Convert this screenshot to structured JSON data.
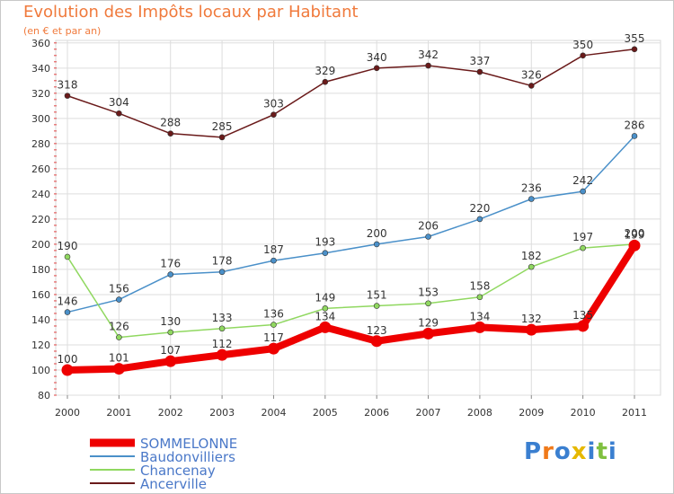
{
  "title": "Evolution des Impôts locaux par Habitant",
  "subtitle": "(en € et par an)",
  "logo_text": "Proxiti",
  "chart_data": {
    "type": "line",
    "x": [
      "2000",
      "2001",
      "2002",
      "2003",
      "2004",
      "2005",
      "2006",
      "2007",
      "2008",
      "2009",
      "2010",
      "2011"
    ],
    "ylim": [
      80,
      360
    ],
    "yticks": [
      80,
      100,
      120,
      140,
      160,
      180,
      200,
      220,
      240,
      260,
      280,
      300,
      320,
      340,
      360
    ],
    "grid": true,
    "legend_position": "bottom-left",
    "series": [
      {
        "name": "SOMMELONNE",
        "color": "#ee0000",
        "values": [
          100,
          101,
          107,
          112,
          117,
          134,
          123,
          129,
          134,
          132,
          135,
          199
        ]
      },
      {
        "name": "Baudonvilliers",
        "color": "#4a90c9",
        "values": [
          146,
          156,
          176,
          178,
          187,
          193,
          200,
          206,
          220,
          236,
          242,
          286
        ]
      },
      {
        "name": "Chancenay",
        "color": "#90d860",
        "values": [
          190,
          126,
          130,
          133,
          136,
          149,
          151,
          153,
          158,
          182,
          197,
          200
        ]
      },
      {
        "name": "Ancerville",
        "color": "#6a1a1a",
        "values": [
          318,
          304,
          288,
          285,
          303,
          329,
          340,
          342,
          337,
          326,
          350,
          355
        ]
      }
    ]
  }
}
